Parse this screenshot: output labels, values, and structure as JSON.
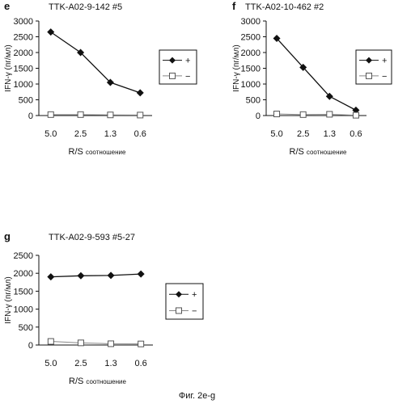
{
  "figure": {
    "caption": "Фиг. 2e-g"
  },
  "chart_data": [
    {
      "panel_label": "e",
      "title": "TTK-A02-9-142 #5",
      "type": "line",
      "categories": [
        "5.0",
        "2.5",
        "1.3",
        "0.6"
      ],
      "xlabel_main": "R/S",
      "xlabel_sub": "соотношение",
      "ylabel": "IFN-γ (пг/мл)",
      "ylim": [
        0,
        3000
      ],
      "yticks": [
        "0",
        "500",
        "1000",
        "1500",
        "2000",
        "2500",
        "3000"
      ],
      "grid": false,
      "legend_position": "right",
      "series": [
        {
          "name": "+",
          "marker": "diamond-filled",
          "values": [
            2650,
            2000,
            1050,
            720
          ]
        },
        {
          "name": "−",
          "marker": "square-open",
          "values": [
            30,
            30,
            20,
            15
          ]
        }
      ]
    },
    {
      "panel_label": "f",
      "title": "TTK-A02-10-462 #2",
      "type": "line",
      "categories": [
        "5.0",
        "2.5",
        "1.3",
        "0.6"
      ],
      "xlabel_main": "R/S",
      "xlabel_sub": "соотношение",
      "ylabel": "IFN-γ (пг/мл)",
      "ylim": [
        0,
        3000
      ],
      "yticks": [
        "0",
        "500",
        "1000",
        "1500",
        "2000",
        "2500",
        "3000"
      ],
      "grid": false,
      "legend_position": "right",
      "series": [
        {
          "name": "+",
          "marker": "diamond-filled",
          "values": [
            2450,
            1530,
            610,
            170
          ]
        },
        {
          "name": "−",
          "marker": "square-open",
          "values": [
            50,
            30,
            40,
            10
          ]
        }
      ]
    },
    {
      "panel_label": "g",
      "title": "TTK-A02-9-593 #5-27",
      "type": "line",
      "categories": [
        "5.0",
        "2.5",
        "1.3",
        "0.6"
      ],
      "xlabel_main": "R/S",
      "xlabel_sub": "соотношение",
      "ylabel": "IFN-γ (пг/мл)",
      "ylim": [
        0,
        2500
      ],
      "yticks": [
        "0",
        "500",
        "1000",
        "1500",
        "2000",
        "2500"
      ],
      "grid": false,
      "legend_position": "right",
      "series": [
        {
          "name": "+",
          "marker": "diamond-filled",
          "values": [
            1900,
            1930,
            1940,
            1980
          ]
        },
        {
          "name": "−",
          "marker": "square-open",
          "values": [
            100,
            60,
            35,
            30
          ]
        }
      ]
    }
  ]
}
